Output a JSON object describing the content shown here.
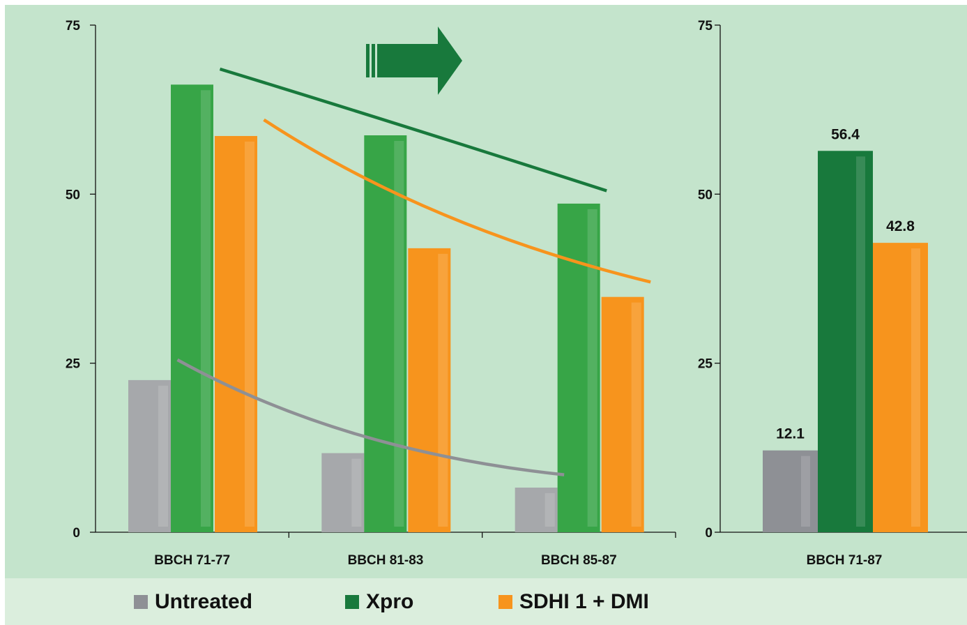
{
  "colors": {
    "untreated": "#a6a8ab",
    "untreated_dark": "#8e9095",
    "xpro": "#37a547",
    "xpro_dark": "#18793c",
    "sdhi": "#f7941d",
    "panel_bg": "#c4e4cc",
    "legend_bg": "#dbeedd"
  },
  "legend": [
    {
      "label": "Untreated",
      "color": "#8e9095"
    },
    {
      "label": "Xpro",
      "color": "#18793c"
    },
    {
      "label": "SDHI 1 + DMI",
      "color": "#f7941d"
    }
  ],
  "chart_data": [
    {
      "type": "bar",
      "categories": [
        "BBCH 71-77",
        "BBCH 81-83",
        "BBCH 85-87"
      ],
      "series": [
        {
          "name": "Untreated",
          "values": [
            22.5,
            11.7,
            6.6
          ]
        },
        {
          "name": "Xpro",
          "values": [
            66.2,
            58.7,
            48.6
          ]
        },
        {
          "name": "SDHI 1 + DMI",
          "values": [
            58.6,
            42.0,
            34.8
          ]
        }
      ],
      "trend_lines": [
        {
          "series": "Untreated",
          "values": [
            25.5,
            12.8,
            8.5
          ]
        },
        {
          "series": "Xpro",
          "values": [
            68.5,
            60.0,
            50.5
          ]
        },
        {
          "series": "SDHI 1 + DMI",
          "values": [
            61.0,
            45.0,
            37.0
          ]
        }
      ],
      "ylim": [
        0,
        75
      ],
      "yticks": [
        0,
        25,
        50,
        75
      ],
      "arrow": "right"
    },
    {
      "type": "bar",
      "categories": [
        "BBCH 71-87"
      ],
      "series": [
        {
          "name": "Untreated",
          "values": [
            12.1
          ]
        },
        {
          "name": "Xpro",
          "values": [
            56.4
          ]
        },
        {
          "name": "SDHI 1 + DMI",
          "values": [
            42.8
          ]
        }
      ],
      "data_labels": [
        "12.1",
        "56.4",
        "42.8"
      ],
      "ylim": [
        0,
        75
      ],
      "yticks": [
        0,
        25,
        50,
        75
      ]
    }
  ]
}
